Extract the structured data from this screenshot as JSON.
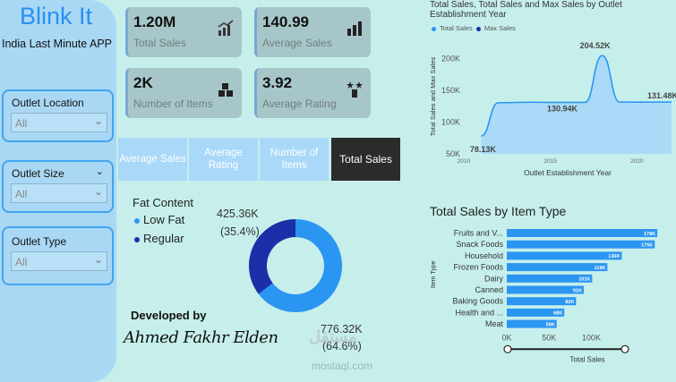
{
  "sidebar": {
    "brand": "Blink It",
    "tagline": "India Last Minute APP",
    "slicers": [
      {
        "label": "Outlet Location",
        "value": "All"
      },
      {
        "label": "Outlet Size",
        "value": "All"
      },
      {
        "label": "Outlet Type",
        "value": "All"
      }
    ]
  },
  "kpis": [
    {
      "value": "1.20M",
      "label": "Total Sales",
      "icon": "chart-growth-icon"
    },
    {
      "value": "140.99",
      "label": "Average Sales",
      "icon": "bar-chart-icon"
    },
    {
      "value": "2K",
      "label": "Number of Items",
      "icon": "boxes-icon"
    },
    {
      "value": "3.92",
      "label": "Average Rating",
      "icon": "rating-stars-icon"
    }
  ],
  "tabs": [
    "Average Sales",
    "Average Rating",
    "Number of Items",
    "Total Sales"
  ],
  "active_tab": "Total Sales",
  "fat_content": {
    "title": "Fat Content",
    "legend": [
      "Low Fat",
      "Regular"
    ],
    "colors": {
      "low_fat": "#2b95f2",
      "regular": "#1a2fa8"
    },
    "label_regular": "425.36K",
    "label_regular_pct": "(35.4%)",
    "label_lowfat": "776.32K",
    "label_lowfat_pct": "(64.6%)"
  },
  "developer": {
    "label": "Developed by",
    "signature": "Ahmed Fakhr Elden"
  },
  "watermark": {
    "arabic": "مستقل",
    "latin": "mostaql.com"
  },
  "chart_data": [
    {
      "type": "donut",
      "categories": [
        "Low Fat",
        "Regular"
      ],
      "values": [
        776.32,
        425.36
      ],
      "units": "K",
      "percent": [
        64.6,
        35.4
      ]
    },
    {
      "type": "area",
      "title": "Total Sales, Total Sales and Max Sales by Outlet Establishment Year",
      "legend": [
        "Total Sales",
        "Max Sales"
      ],
      "xlabel": "Outlet Establishment Year",
      "ylabel": "Total Sales and Max Sales",
      "x": [
        2011,
        2012,
        2014,
        2015,
        2016,
        2017,
        2018,
        2019,
        2020,
        2022
      ],
      "values": [
        78.13,
        130.5,
        131.2,
        130.9,
        131.0,
        130.94,
        204.52,
        131.5,
        131.3,
        131.48
      ],
      "units": "K",
      "xticks": [
        "2010",
        "2015",
        "2020"
      ],
      "yticks": [
        "50K",
        "100K",
        "150K",
        "200K"
      ],
      "ylim": [
        50,
        230
      ],
      "xlim": [
        2010,
        2022
      ],
      "data_labels": [
        {
          "year": 2011,
          "text": "78.13K"
        },
        {
          "year": 2016,
          "text": "130.94K"
        },
        {
          "year": 2018,
          "text": "204.52K"
        },
        {
          "year": 2022,
          "text": "131.48K"
        }
      ],
      "color": "#2b95f2"
    },
    {
      "type": "bar",
      "orientation": "horizontal",
      "title": "Total Sales by Item Type",
      "xlabel": "Total Sales",
      "ylabel": "Item Type",
      "categories": [
        "Fruits and V...",
        "Snack Foods",
        "Household",
        "Frozen Foods",
        "Dairy",
        "Canned",
        "Baking Goods",
        "Health and ...",
        "Meat"
      ],
      "values": [
        178,
        175,
        136,
        119,
        101,
        91,
        82,
        68,
        59
      ],
      "value_labels": [
        "178K",
        "175K",
        "136K",
        "119K",
        "101K",
        "91K",
        "82K",
        "68K",
        "59K"
      ],
      "xticks": [
        "0K",
        "50K",
        "100K"
      ],
      "xlim": [
        0,
        180
      ],
      "color": "#2b95f2"
    }
  ]
}
